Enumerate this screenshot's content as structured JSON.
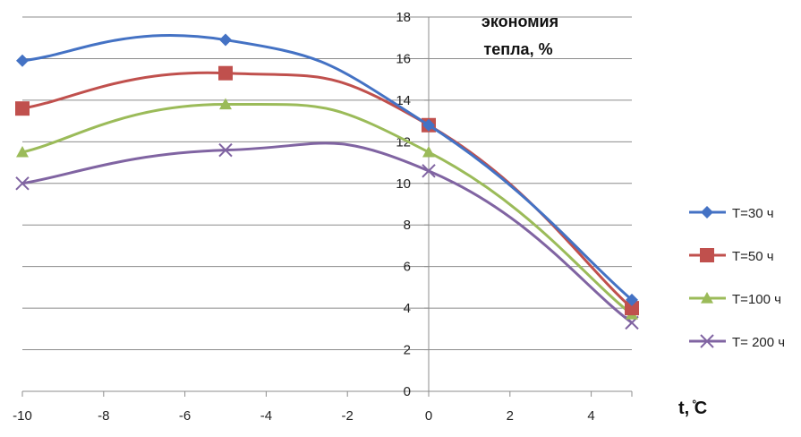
{
  "chart_data": {
    "type": "line",
    "ylabel_lines": [
      "экономия",
      "тепла, %"
    ],
    "xlabel": "t, ̊C",
    "xlim": [
      -10,
      5
    ],
    "ylim": [
      0,
      18
    ],
    "xticks": [
      -10,
      -8,
      -6,
      -4,
      -2,
      0,
      2,
      4
    ],
    "yticks": [
      0,
      2,
      4,
      6,
      8,
      10,
      12,
      14,
      16,
      18
    ],
    "grid": "horizontal",
    "legend_position": "right",
    "x": [
      -10,
      -5,
      0,
      5
    ],
    "series": [
      {
        "name": "T=30 ч",
        "values": [
          15.9,
          16.9,
          12.8,
          4.4
        ],
        "color": "#4472c4",
        "marker": "diamond"
      },
      {
        "name": "T=50 ч",
        "values": [
          13.6,
          15.3,
          12.8,
          4.0
        ],
        "color": "#c0504d",
        "marker": "square"
      },
      {
        "name": "T=100 ч",
        "values": [
          11.5,
          13.8,
          11.5,
          3.7
        ],
        "color": "#9bbb59",
        "marker": "triangle"
      },
      {
        "name": "T= 200 ч",
        "values": [
          10.0,
          11.6,
          10.6,
          3.3
        ],
        "color": "#8064a2",
        "marker": "x"
      }
    ]
  }
}
